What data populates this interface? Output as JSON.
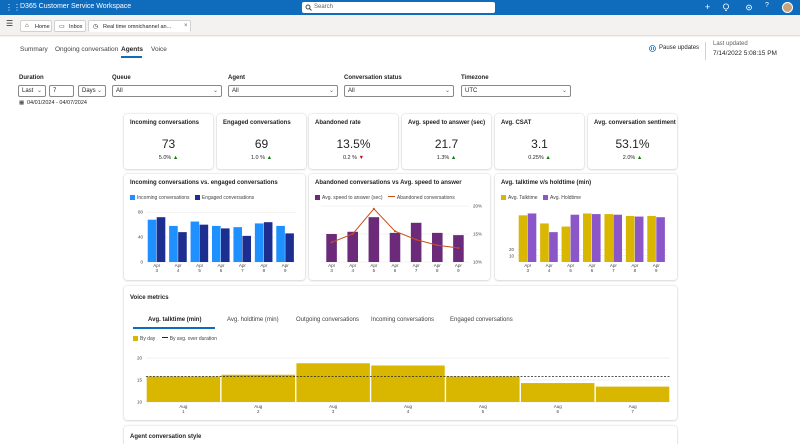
{
  "app": {
    "title": "D365 Customer Service Workspace",
    "search_placeholder": "Search"
  },
  "colors": {
    "accent": "#0f6cbd",
    "incoming": "#1e90ff",
    "engaged": "#1c2e8f",
    "abandoned_bar": "#6b2a7a",
    "abandoned_line": "#c8511b",
    "talktime": "#d9b600",
    "holdtime": "#8a56c8"
  },
  "browser_tabs": [
    {
      "label": "Home",
      "icon": "home-icon"
    },
    {
      "label": "Inbox",
      "icon": "inbox-icon"
    },
    {
      "label": "Real time omnichannel an...",
      "icon": "dashboard-icon"
    }
  ],
  "nav": {
    "tabs": [
      "Summary",
      "Ongoing conversation",
      "Agents",
      "Voice"
    ],
    "active": "Agents",
    "pause_label": "Pause updates",
    "last_updated_label": "Last updated",
    "last_updated_value": "7/14/2022 5:08:15 PM"
  },
  "filters": {
    "duration": {
      "label": "Duration",
      "mode": "Last",
      "count": "7",
      "unit": "Days",
      "range": "04/01/2024 - 04/07/2024"
    },
    "queue": {
      "label": "Queue",
      "value": "All"
    },
    "agent": {
      "label": "Agent",
      "value": "All"
    },
    "conversation_status": {
      "label": "Conversation status",
      "value": "All"
    },
    "timezone": {
      "label": "Timezone",
      "value": "UTC"
    }
  },
  "kpis": [
    {
      "title": "Incoming conversations",
      "value": "73",
      "delta": "5.0%",
      "trend": "up"
    },
    {
      "title": "Engaged conversations",
      "value": "69",
      "delta": "1.0 %",
      "trend": "up"
    },
    {
      "title": "Abandoned rate",
      "value": "13.5%",
      "delta": "0.2 %",
      "trend": "down"
    },
    {
      "title": "Avg. speed to answer (sec)",
      "value": "21.7",
      "delta": "1.3%",
      "trend": "up"
    },
    {
      "title": "Avg. CSAT",
      "value": "3.1",
      "delta": "0.25%",
      "trend": "up"
    },
    {
      "title": "Avg. conversation sentiment",
      "value": "53.1%",
      "delta": "2.0%",
      "trend": "up"
    }
  ],
  "chart_data": [
    {
      "type": "bar",
      "title": "Incoming conversations  vs. engaged conversations",
      "categories": [
        "Apr 3",
        "Apr 4",
        "Apr 5",
        "Apr 6",
        "Apr 7",
        "Apr 8",
        "Apr 9"
      ],
      "series": [
        {
          "name": "Incoming conversations",
          "values": [
            68,
            58,
            65,
            58,
            56,
            62,
            58
          ]
        },
        {
          "name": "Engaged conversations",
          "values": [
            72,
            48,
            60,
            54,
            42,
            64,
            46
          ]
        }
      ],
      "yticks": [
        0,
        40,
        80
      ],
      "ylim": [
        0,
        90
      ],
      "legend": "top"
    },
    {
      "type": "bar",
      "title": "Abandoned conversations vs Avg. speed to answer",
      "categories": [
        "Apr 3",
        "Apr 4",
        "Apr 5",
        "Apr 6",
        "Apr 7",
        "Apr 8",
        "Apr 9"
      ],
      "series": [
        {
          "name": "Avg. speed to answer (sec)",
          "values": [
            50,
            54,
            80,
            52,
            70,
            52,
            48
          ]
        },
        {
          "name": "Abandoned conversations",
          "type": "line",
          "axis": "right",
          "values": [
            13.5,
            15.0,
            19.5,
            15.5,
            14.0,
            13.0,
            12.5
          ]
        }
      ],
      "y2ticks": [
        "10%",
        "15%",
        "20%"
      ],
      "y2lim": [
        10,
        20
      ],
      "ylim": [
        0,
        100
      ],
      "legend": "top"
    },
    {
      "type": "bar",
      "title": "Avg. talktime v/s holdtime (min)",
      "categories": [
        "Apr 3",
        "Apr 4",
        "Apr 5",
        "Apr 6",
        "Apr 7",
        "Apr 8",
        "Apr 9"
      ],
      "series": [
        {
          "name": "Avg. Talktime",
          "values": [
            75,
            62,
            57,
            78,
            77,
            74,
            74
          ]
        },
        {
          "name": "Avg. Holdtime",
          "values": [
            78,
            48,
            76,
            77,
            76,
            73,
            72
          ]
        }
      ],
      "yticks": [
        10,
        20
      ],
      "ylim": [
        0,
        90
      ],
      "legend": "top"
    },
    {
      "type": "bar",
      "title": "Voice metrics",
      "tabs": [
        "Avg. talktime (min)",
        "Avg. holdtime (min)",
        "Outgoing conversations",
        "Incoming conversations",
        "Engaged conversations"
      ],
      "active_tab": "Avg. talktime (min)",
      "categories": [
        "Aug 1",
        "Aug 2",
        "Aug 3",
        "Aug 4",
        "Aug 5",
        "Aug 6",
        "Aug 7"
      ],
      "series": [
        {
          "name": "By day",
          "values": [
            15.8,
            16.2,
            18.8,
            18.3,
            15.8,
            14.3,
            13.5
          ]
        }
      ],
      "reference": {
        "name": "By avg. over duration",
        "value": 15.8
      },
      "yticks": [
        10,
        15,
        20
      ],
      "ylim": [
        10,
        20
      ],
      "legend": "top-left"
    }
  ],
  "next_section_title": "Agent conversation style"
}
